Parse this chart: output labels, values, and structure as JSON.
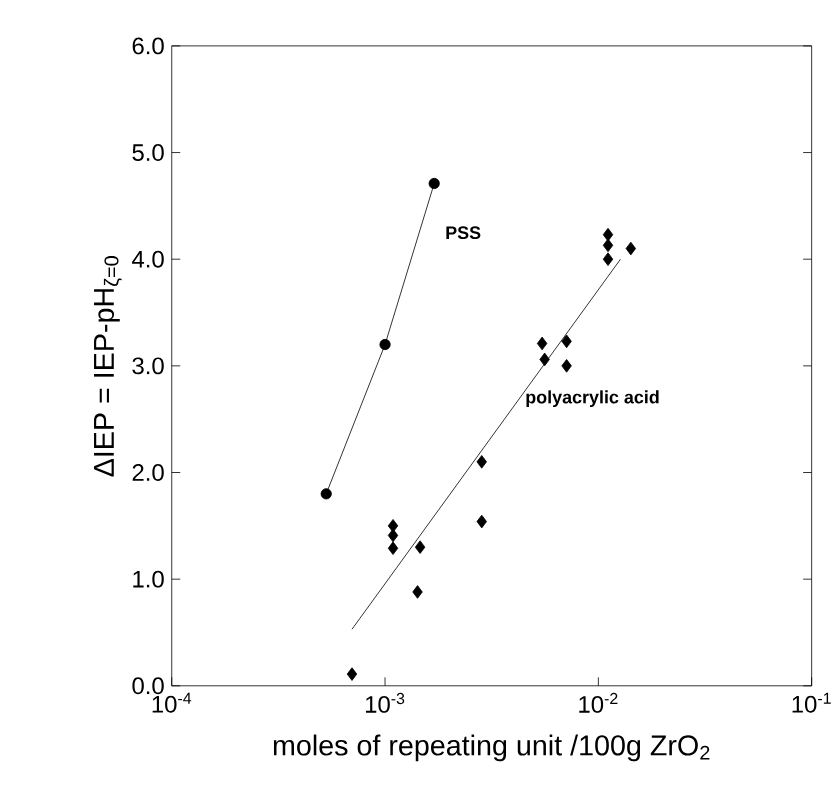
{
  "chart_data": {
    "type": "scatter",
    "xlabel": "moles of repeating unit /100g ZrO$_{2}$",
    "ylabel": "ΔIEP = IEP-pH$_{ζ=0}$",
    "log": "x",
    "xlim": [
      0.0001,
      0.1
    ],
    "ylim": [
      0,
      6
    ],
    "xticks": [
      {
        "value": 0.0001,
        "label": "10$^{-4}$"
      },
      {
        "value": 0.001,
        "label": "10$^{-3}$"
      },
      {
        "value": 0.01,
        "label": "10$^{-2}$"
      },
      {
        "value": 0.1,
        "label": "10$^{-1}$"
      }
    ],
    "yticks": [
      {
        "value": 0,
        "label": "0.0"
      },
      {
        "value": 1,
        "label": "1.0"
      },
      {
        "value": 2,
        "label": "2.0"
      },
      {
        "value": 3,
        "label": "3.0"
      },
      {
        "value": 4,
        "label": "4.0"
      },
      {
        "value": 5,
        "label": "5.0"
      },
      {
        "value": 6,
        "label": "6.0"
      }
    ],
    "grid": false,
    "series": [
      {
        "type": "line",
        "name": "PSS",
        "marker": "circle",
        "color": "#000000",
        "x": [
          0.00053,
          0.001,
          0.0017
        ],
        "values": [
          1.8,
          3.2,
          4.71
        ]
      },
      {
        "name": "polyacrylic acid",
        "marker": "diamond",
        "color": "#000000",
        "x": [
          0.0007,
          0.00109,
          0.00109,
          0.00109,
          0.00146,
          0.00142,
          0.00284,
          0.00284,
          0.00545,
          0.0056,
          0.0071,
          0.0071,
          0.0111,
          0.0111,
          0.0111,
          0.0142
        ],
        "values": [
          0.11,
          1.5,
          1.41,
          1.29,
          1.3,
          0.88,
          2.1,
          1.54,
          3.21,
          3.06,
          3.23,
          3.0,
          4.23,
          4.13,
          4.0,
          4.1
        ]
      },
      {
        "type": "line",
        "marker": "none",
        "color": "#000000",
        "x": [
          0.0007,
          0.0127
        ],
        "values": [
          0.53,
          4.0
        ]
      }
    ]
  }
}
